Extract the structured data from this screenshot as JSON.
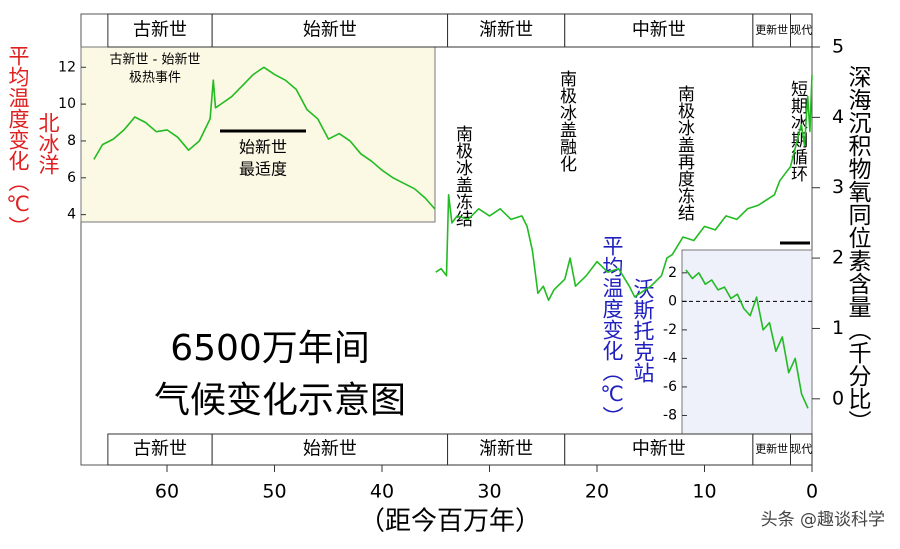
{
  "chart_data": [
    {
      "type": "line",
      "title": "6500万年间",
      "subtitle": "气候变化示意图",
      "x_label": "（距今百万年）",
      "y_label": "深海沉积物氧同位素含量（千分比）",
      "xlim": [
        68,
        0
      ],
      "xticks": [
        60,
        50,
        40,
        30,
        20,
        10,
        0
      ],
      "ylim": [
        -0.5,
        5
      ],
      "yticks": [
        0,
        1,
        2,
        3,
        4,
        5
      ],
      "epochs": [
        {
          "name": "古新世",
          "start": 65.5,
          "end": 55.8
        },
        {
          "name": "始新世",
          "start": 55.8,
          "end": 33.9
        },
        {
          "name": "渐新世",
          "start": 33.9,
          "end": 23
        },
        {
          "name": "中新世",
          "start": 23,
          "end": 5.5
        },
        {
          "name": "更新世",
          "start": 5.5,
          "end": 2
        },
        {
          "name": "现代",
          "start": 2,
          "end": 0
        }
      ],
      "annotations": [
        "古新世 - 始新世",
        "极热事件",
        "始新世",
        "最适度",
        "南极冰盖冻结",
        "南极冰盖融化",
        "南极冰盖再度冻结",
        "短期冰期循环"
      ],
      "series": [
        {
          "color": "#22bb22",
          "x": [
            35,
            34.5,
            34,
            33.8,
            33.5,
            33,
            32,
            31,
            30,
            29,
            28,
            27,
            26.5,
            26,
            25.5,
            25,
            24.5,
            24,
            23,
            22.5,
            22,
            21,
            20,
            19,
            18,
            17,
            16.5,
            16,
            15,
            14,
            13.5,
            13,
            12,
            11,
            10,
            9,
            8,
            7,
            6,
            5,
            4,
            3.5,
            3,
            2.5,
            2,
            1.5,
            1,
            0.7,
            0.4,
            0.2,
            0
          ],
          "values": [
            1.8,
            1.85,
            1.75,
            2.9,
            2.5,
            2.6,
            2.55,
            2.7,
            2.6,
            2.7,
            2.55,
            2.6,
            2.45,
            2.1,
            1.5,
            1.6,
            1.4,
            1.55,
            1.7,
            2.0,
            1.6,
            1.75,
            1.95,
            1.8,
            1.85,
            1.6,
            1.45,
            1.5,
            1.6,
            1.75,
            2.0,
            2.05,
            2.3,
            2.25,
            2.45,
            2.4,
            2.6,
            2.55,
            2.7,
            2.75,
            2.85,
            2.9,
            3.1,
            3.2,
            3.3,
            3.6,
            3.9,
            3.6,
            4.3,
            3.8,
            4.6
          ]
        }
      ],
      "watermark": "头条 @趣谈科学"
    },
    {
      "type": "line",
      "y_label": "平均温度变化（℃）",
      "location": "北冰洋",
      "xlim": [
        68,
        35.1
      ],
      "ylim": [
        3.6,
        13.1
      ],
      "yticks": [
        4,
        6,
        8,
        10,
        12
      ],
      "series": [
        {
          "color": "#22bb22",
          "x": [
            66.8,
            66,
            65,
            64,
            63,
            62,
            61,
            60,
            59,
            58,
            57,
            56,
            55.7,
            55.5,
            55,
            54,
            53,
            52,
            51.5,
            51,
            50,
            49,
            48,
            47,
            46,
            45,
            44,
            43,
            42,
            41,
            40,
            39,
            38,
            37,
            36,
            35.1
          ],
          "values": [
            7.0,
            7.8,
            8.1,
            8.6,
            9.3,
            9.0,
            8.5,
            8.6,
            8.2,
            7.5,
            8.0,
            9.2,
            11.3,
            9.8,
            10.0,
            10.4,
            11.0,
            11.6,
            11.8,
            12.0,
            11.6,
            11.3,
            10.8,
            9.7,
            9.2,
            8.1,
            8.4,
            8.0,
            7.3,
            6.9,
            6.4,
            6.0,
            5.7,
            5.4,
            4.9,
            4.3
          ]
        }
      ]
    },
    {
      "type": "line",
      "y_label": "平均温度变化（℃）",
      "location": "沃斯托克站",
      "ylim": [
        -9.3,
        3.6
      ],
      "yticks": [
        2,
        0,
        -2,
        -4,
        -6,
        -8
      ],
      "reference_line": 0,
      "series": [
        {
          "color": "#22bb22",
          "values": [
            2.2,
            1.6,
            2.0,
            1.2,
            1.5,
            0.8,
            1.0,
            0.2,
            0.5,
            -0.5,
            -1.0,
            0.3,
            -2.0,
            -1.5,
            -3.5,
            -2.5,
            -5.0,
            -4.0,
            -6.5,
            -7.5
          ]
        }
      ]
    }
  ]
}
